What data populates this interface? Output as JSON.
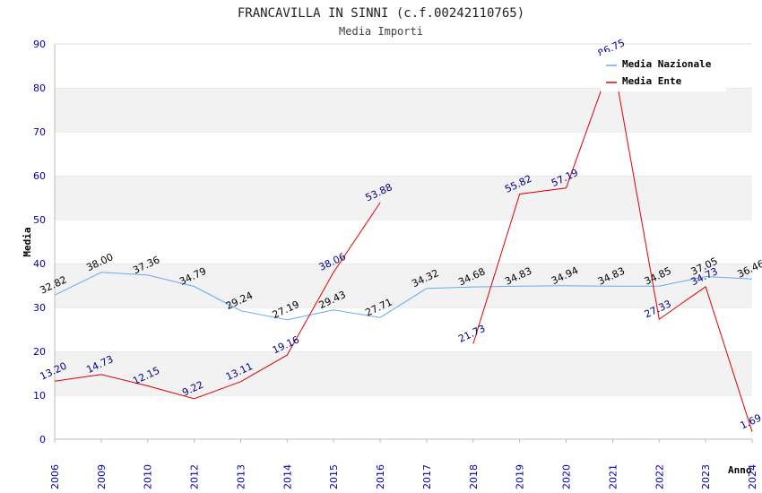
{
  "chart_data": {
    "type": "line",
    "title": "FRANCAVILLA IN SINNI (c.f.00242110765)",
    "subtitle": "Media Importi",
    "xlabel": "Anno",
    "ylabel": "Media",
    "ylim": [
      0,
      90
    ],
    "yticks": [
      "0",
      "10",
      "20",
      "30",
      "40",
      "50",
      "60",
      "70",
      "80",
      "90"
    ],
    "grid": "horizontal bands",
    "legend_position": "top-right",
    "categories": [
      "2006",
      "2009",
      "2010",
      "2012",
      "2013",
      "2014",
      "2015",
      "2016",
      "2017",
      "2018",
      "2019",
      "2020",
      "2021",
      "2022",
      "2023",
      "2024"
    ],
    "series": [
      {
        "name": "Media Nazionale",
        "color": "#66aaee",
        "values": [
          32.82,
          38.0,
          37.36,
          34.79,
          29.24,
          27.19,
          29.43,
          27.71,
          34.32,
          34.68,
          34.83,
          34.94,
          34.83,
          34.85,
          37.05,
          36.46
        ],
        "labels": [
          "32.82",
          "38.00",
          "37.36",
          "34.79",
          "29.24",
          "27.19",
          "29.43",
          "27.71",
          "34.32",
          "34.68",
          "34.83",
          "34.94",
          "34.83",
          "34.85",
          "37.05",
          "36.46"
        ]
      },
      {
        "name": "Media Ente",
        "color": "#dd0000",
        "values": [
          13.2,
          14.73,
          12.15,
          9.22,
          13.11,
          19.16,
          38.06,
          53.88,
          null,
          21.73,
          55.82,
          57.19,
          86.75,
          27.33,
          34.73,
          1.69
        ],
        "labels": [
          "13.20",
          "14.73",
          "12.15",
          "9.22",
          "13.11",
          "19.16",
          "38.06",
          "53.88",
          "",
          "21.73",
          "55.82",
          "57.19",
          "86.75",
          "27.33",
          "34.73",
          "1.69"
        ]
      }
    ]
  }
}
